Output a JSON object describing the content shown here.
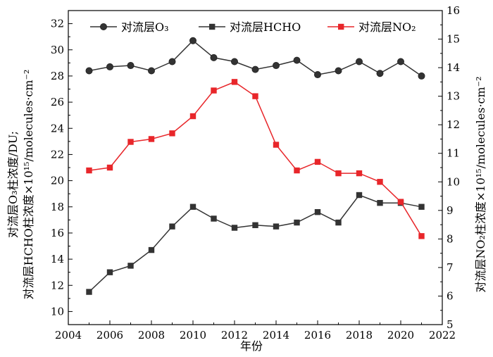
{
  "chart_data": {
    "type": "line",
    "xlabel": "年份",
    "ylabel_left_line1": "对流层O₃柱浓度/DU;",
    "ylabel_left_line2": "对流层HCHO柱浓度×10¹⁵/molecules·cm⁻²",
    "ylabel_right": "对流层NO₂柱浓度×10¹⁵/molecules·cm⁻²",
    "xlim": [
      2004,
      2022
    ],
    "xticks": [
      2004,
      2006,
      2008,
      2010,
      2012,
      2014,
      2016,
      2018,
      2020,
      2022
    ],
    "ylim_left": [
      9,
      33
    ],
    "yticks_left": [
      10,
      12,
      14,
      16,
      18,
      20,
      22,
      24,
      26,
      28,
      30,
      32
    ],
    "ylim_right": [
      5,
      16
    ],
    "yticks_right": [
      5,
      6,
      7,
      8,
      9,
      10,
      11,
      12,
      13,
      14,
      15,
      16
    ],
    "x": [
      2005,
      2006,
      2007,
      2008,
      2009,
      2010,
      2011,
      2012,
      2013,
      2014,
      2015,
      2016,
      2017,
      2018,
      2019,
      2020,
      2021
    ],
    "series": [
      {
        "name": "对流层O₃",
        "axis": "left",
        "marker": "circle",
        "color": "#333333",
        "values": [
          28.4,
          28.7,
          28.8,
          28.4,
          29.1,
          30.7,
          29.4,
          29.1,
          28.5,
          28.8,
          29.2,
          28.1,
          28.4,
          29.1,
          28.2,
          29.1,
          28.0
        ]
      },
      {
        "name": "对流层HCHO",
        "axis": "left",
        "marker": "square",
        "color": "#333333",
        "values": [
          11.5,
          13.0,
          13.5,
          14.7,
          16.5,
          18.0,
          17.1,
          16.4,
          16.6,
          16.5,
          16.8,
          17.6,
          16.8,
          18.9,
          18.3,
          18.3,
          18.0
        ]
      },
      {
        "name": "对流层NO₂",
        "axis": "right",
        "marker": "square",
        "color": "#e8262a",
        "values": [
          10.4,
          10.5,
          11.4,
          11.5,
          11.7,
          12.3,
          13.2,
          13.5,
          13.0,
          11.3,
          10.4,
          10.7,
          10.3,
          10.3,
          10.0,
          9.3,
          8.1
        ]
      }
    ],
    "legend_position": "top"
  }
}
